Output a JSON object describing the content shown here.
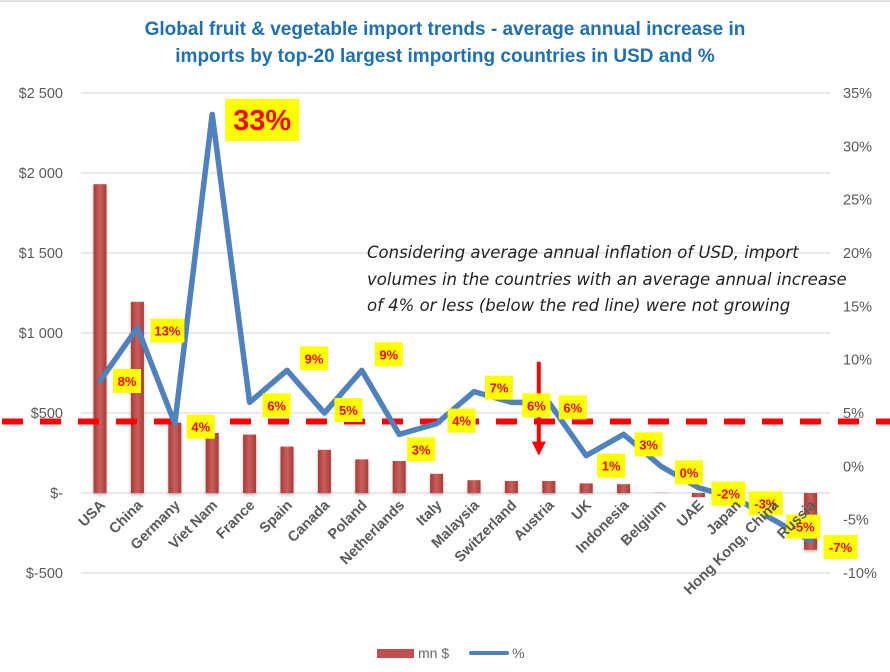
{
  "title": {
    "line1": "Global fruit & vegetable import trends  - average annual increase in",
    "line2": "imports by top-20 largest importing countries in USD and %"
  },
  "annotation": "Considering average annual inflation of USD, import volumes in the countries with an average annual increase of 4% or less (below the red line) were not growing",
  "legend": {
    "bar_label": "mn $",
    "line_label": "%"
  },
  "colors": {
    "bar": "#c0504d",
    "line": "#4f81bd",
    "threshold": "#ff0000",
    "label_bg": "#ffff00",
    "label_text": "#ff0000",
    "title": "#1f6fb5"
  },
  "chart_data": {
    "type": "bar+line",
    "title": "Global fruit & vegetable import trends - average annual increase in imports by top-20 largest importing countries in USD and %",
    "categories": [
      "USA",
      "China",
      "Germany",
      "Viet Nam",
      "France",
      "Spain",
      "Canada",
      "Poland",
      "Netherlands",
      "Italy",
      "Malaysia",
      "Switzerland",
      "Austria",
      "UK",
      "Indonesia",
      "Belgium",
      "UAE",
      "Japan",
      "Hong Kong, China",
      "Russia"
    ],
    "series": [
      {
        "name": "mn $",
        "type": "bar",
        "axis": "left",
        "values": [
          1930,
          1195,
          440,
          375,
          365,
          290,
          270,
          210,
          200,
          120,
          80,
          75,
          75,
          60,
          55,
          5,
          -25,
          -40,
          -100,
          -355
        ]
      },
      {
        "name": "%",
        "type": "line",
        "axis": "right",
        "values": [
          8,
          13,
          4,
          33,
          6,
          9,
          5,
          9,
          3,
          4,
          7,
          6,
          6,
          1,
          3,
          0,
          -2,
          -3,
          -5,
          -7
        ],
        "data_labels": [
          "8%",
          "13%",
          "4%",
          "33%",
          "6%",
          "9%",
          "5%",
          "9%",
          "3%",
          "4%",
          "7%",
          "6%",
          "6%",
          "1%",
          "3%",
          "0%",
          "-2%",
          "-3%",
          "-5%",
          "-7%"
        ]
      }
    ],
    "left_axis": {
      "ylim": [
        -500,
        2500
      ],
      "ticks": [
        2500,
        2000,
        1500,
        1000,
        500,
        0,
        -500
      ],
      "tick_labels": [
        "$2 500",
        "$2 000",
        "$1 500",
        "$1 000",
        "$500",
        "$-",
        "$-500"
      ]
    },
    "right_axis": {
      "ylim": [
        -10,
        35
      ],
      "ticks": [
        35,
        30,
        25,
        20,
        15,
        10,
        5,
        0,
        -5,
        -10
      ],
      "tick_labels": [
        "35%",
        "30%",
        "25%",
        "20%",
        "15%",
        "10%",
        "5%",
        "0%",
        "-5%",
        "-10%"
      ]
    },
    "threshold_line": {
      "axis": "right",
      "value": 4.2,
      "style": "dashed",
      "color": "#ff0000"
    },
    "arrow_annotation": {
      "category": "Austria",
      "from_pct": 9.8,
      "to_pct": 1.0,
      "direction": "down"
    },
    "highlight_label": "33%",
    "grid": true,
    "legend_position": "bottom"
  }
}
